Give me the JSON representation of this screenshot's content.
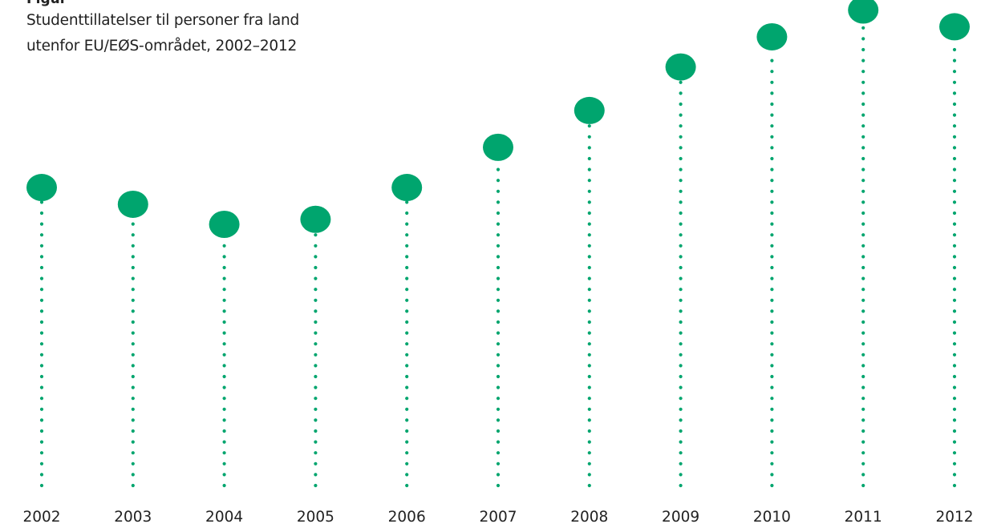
{
  "figure": {
    "label": "Figur",
    "title": "Studenttillatelser til personer fra land utenfor EU/EØS-området, 2002–2012"
  },
  "colors": {
    "dot": "#00a56e",
    "stem": "#00a56e",
    "text": "#222222"
  },
  "chart_data": {
    "type": "lollipop",
    "title": "Studenttillatelser til personer fra land utenfor EU/EØS-området, 2002–2012",
    "categories": [
      "2002",
      "2003",
      "2004",
      "2005",
      "2006",
      "2007",
      "2008",
      "2009",
      "2010",
      "2011",
      "2012"
    ],
    "values": [
      1780,
      1680,
      1560,
      1590,
      1780,
      2020,
      2240,
      2500,
      2680,
      2840,
      2740
    ],
    "value_axis": "relative (no scale printed)",
    "ylim": [
      0,
      2900
    ],
    "xlabel": "",
    "ylabel": "",
    "grid": false,
    "legend": "none"
  }
}
